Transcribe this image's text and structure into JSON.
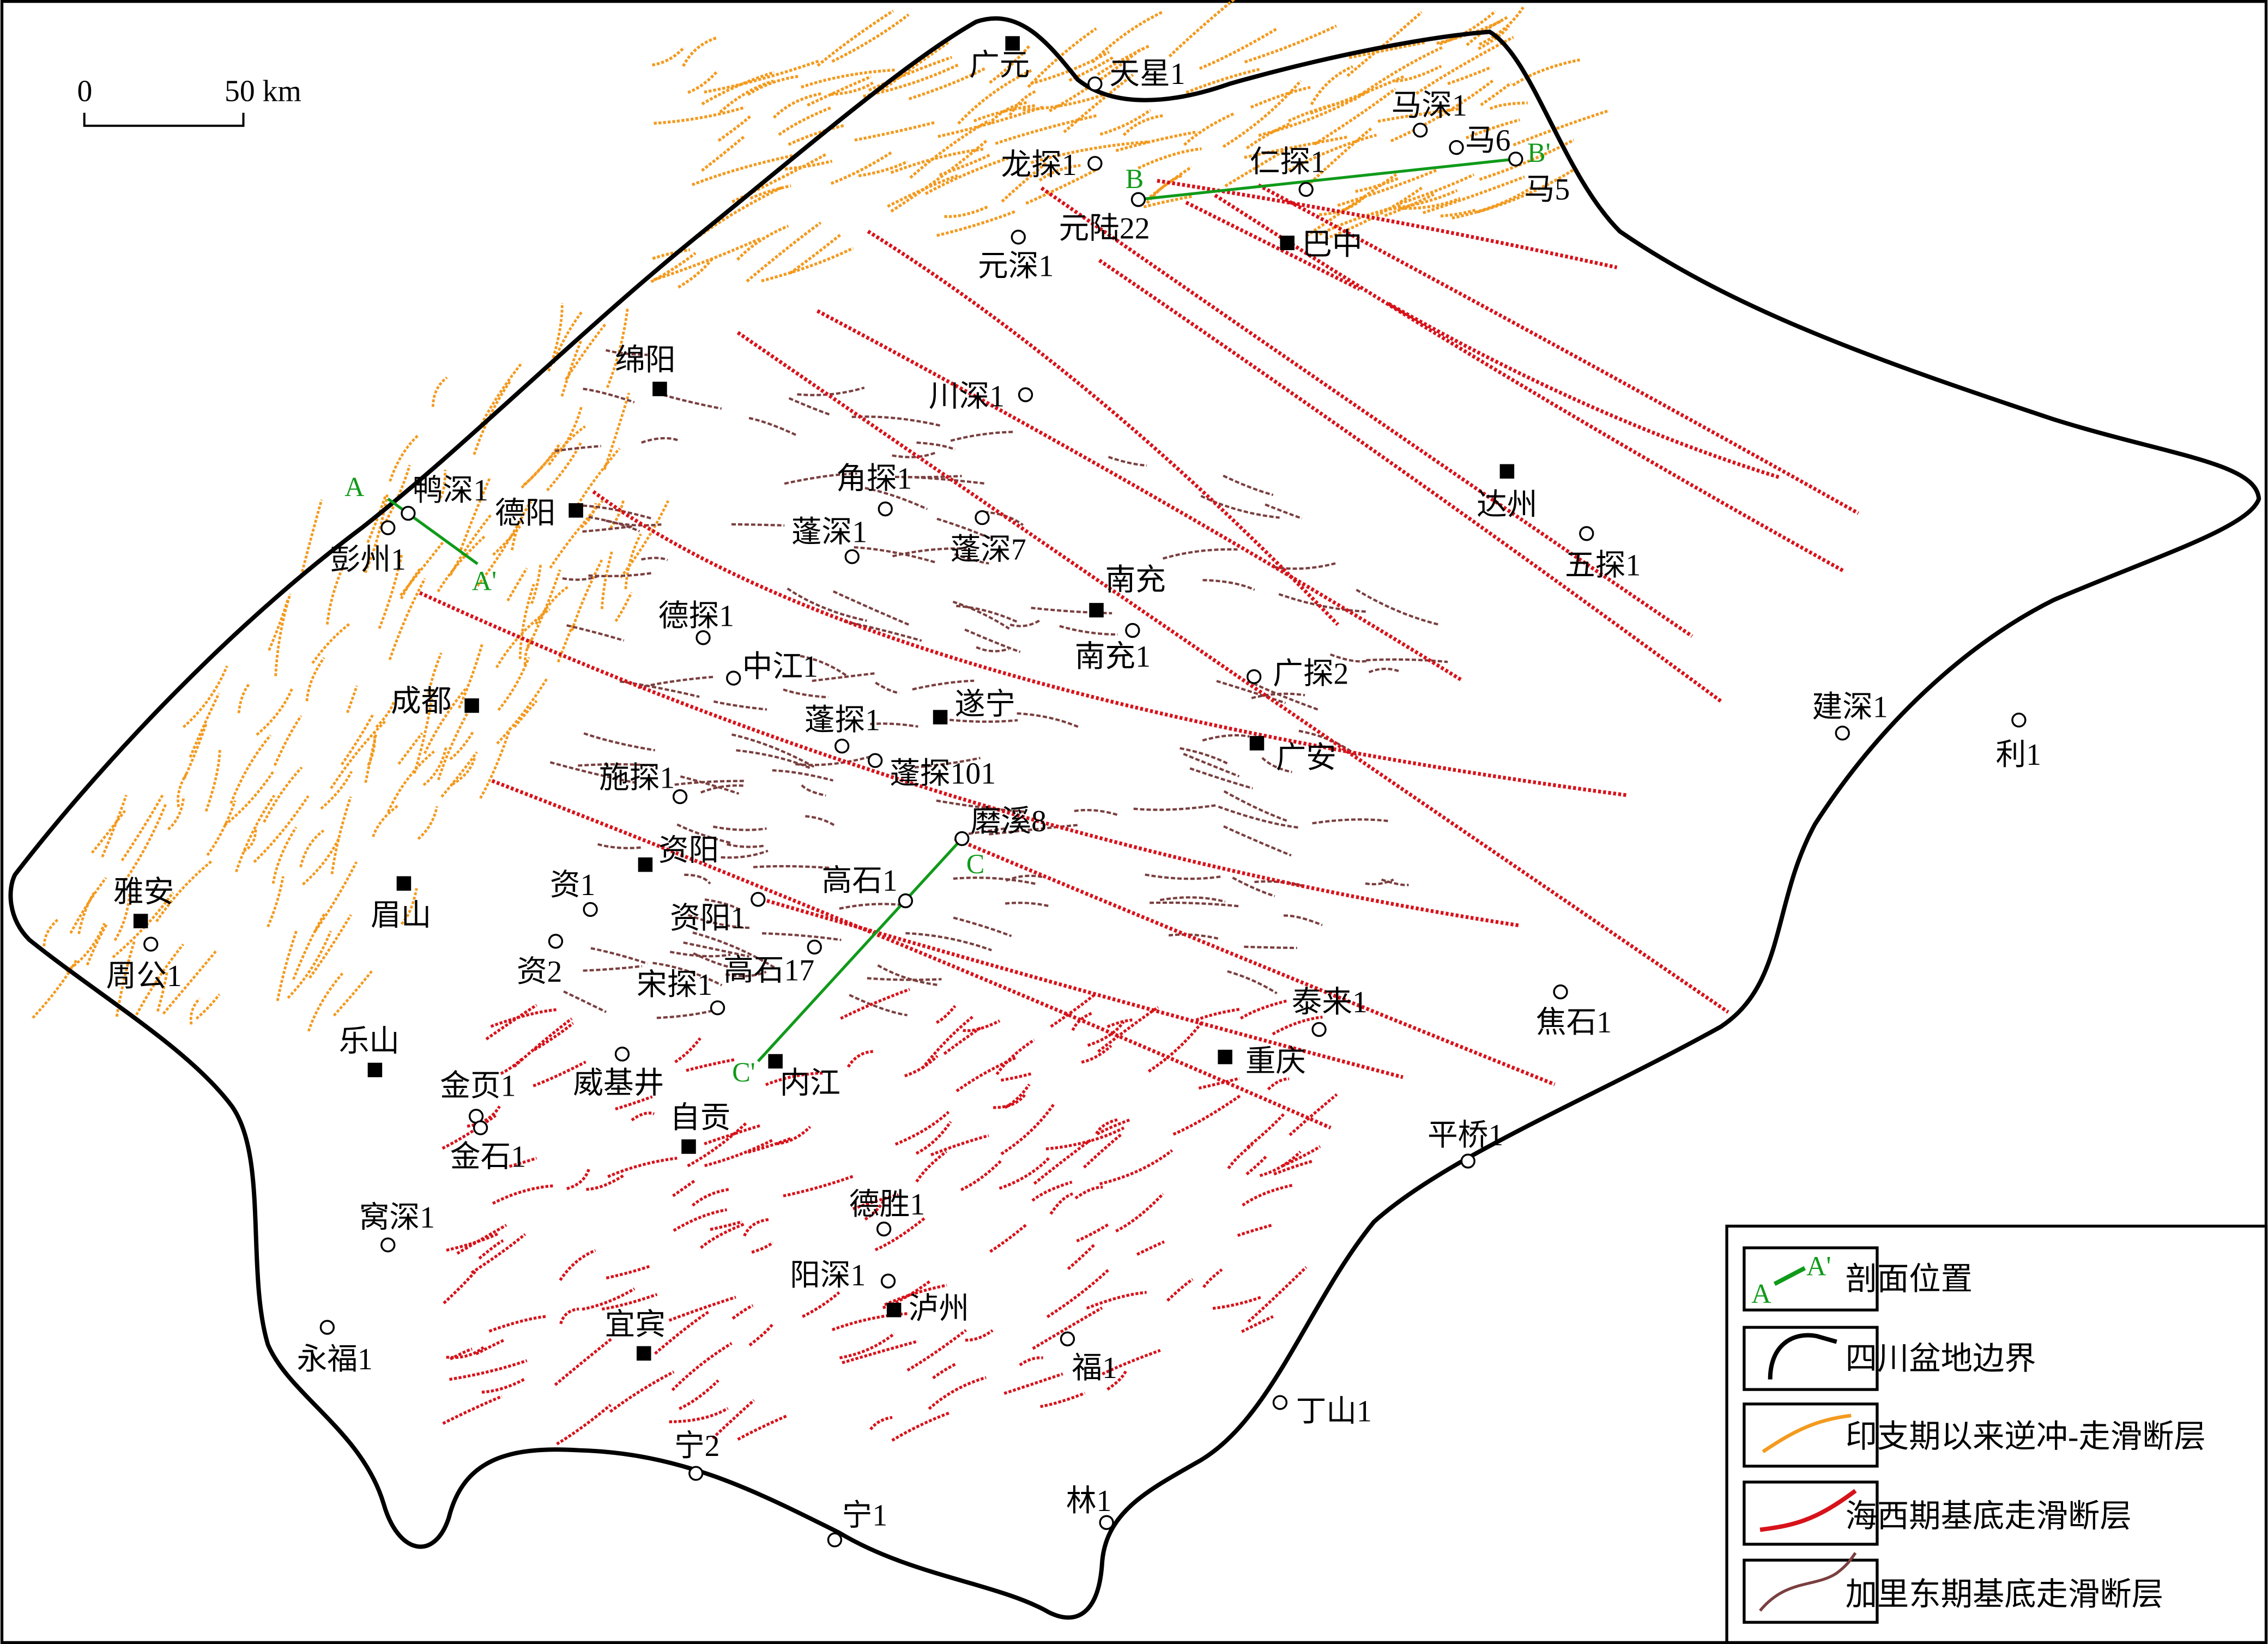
{
  "scale_bar": {
    "start_label": "0",
    "end_label": "50 km"
  },
  "colors": {
    "section": "#109a1a",
    "boundary": "#000000",
    "indosinian_fault": "#f39a1e",
    "hercynian_fault": "#d7121a",
    "caledonian_fault": "#7a3f3f"
  },
  "cities": [
    "广元",
    "巴中",
    "绵阳",
    "德阳",
    "达州",
    "南充",
    "遂宁",
    "成都",
    "广安",
    "资阳",
    "雅安",
    "眉山",
    "乐山",
    "内江",
    "重庆",
    "自贡",
    "泸州",
    "宜宾"
  ],
  "wells": [
    "天星1",
    "马深1",
    "马6",
    "马5",
    "龙探1",
    "仁探1",
    "元陆22",
    "元深1",
    "川深1",
    "角探1",
    "蓬深1",
    "蓬深7",
    "鸭深1",
    "彭州1",
    "五探1",
    "德探1",
    "南充1",
    "中江1",
    "广探2",
    "建深1",
    "利1",
    "蓬探1",
    "蓬探101",
    "施探1",
    "磨溪8",
    "资1",
    "高石1",
    "资阳1",
    "周公1",
    "资2",
    "高石17",
    "宋探1",
    "泰来1",
    "焦石1",
    "威基井",
    "金页1",
    "金石1",
    "平桥1",
    "窝深1",
    "德胜1",
    "阳深1",
    "福1",
    "永福1",
    "丁山1",
    "宁2",
    "宁1",
    "林1"
  ],
  "sections": [
    {
      "start": "A",
      "end": "A'"
    },
    {
      "start": "B",
      "end": "B'"
    },
    {
      "start": "C",
      "end": "C'"
    }
  ],
  "legend": {
    "items": [
      {
        "label": "剖面位置",
        "symbol_start": "A",
        "symbol_end": "A'"
      },
      {
        "label": "四川盆地边界"
      },
      {
        "label": "印支期以来逆冲-走滑断层"
      },
      {
        "label": "海西期基底走滑断层"
      },
      {
        "label": "加里东期基底走滑断层"
      }
    ]
  }
}
